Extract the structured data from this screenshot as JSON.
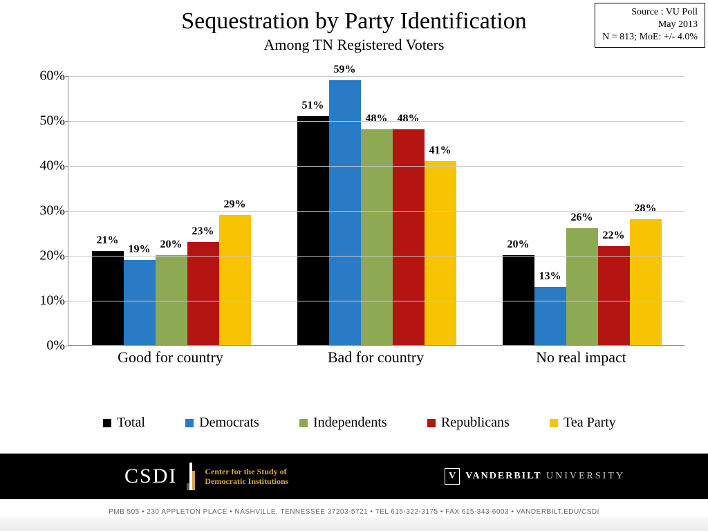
{
  "source": {
    "line1": "Source : VU Poll",
    "line2": "May 2013",
    "line3": "N = 813; MoE: +/- 4.0%"
  },
  "title": "Sequestration by Party Identification",
  "subtitle": "Among TN Registered Voters",
  "chart": {
    "type": "bar",
    "ylim_max": 60,
    "ytick_step": 10,
    "grid_color": "#c8c8c8",
    "categories": [
      "Good for country",
      "Bad for country",
      "No real impact"
    ],
    "series": [
      {
        "name": "Total",
        "color": "#000000"
      },
      {
        "name": "Democrats",
        "color": "#2a7bc6"
      },
      {
        "name": "Independents",
        "color": "#8ea954"
      },
      {
        "name": "Republicans",
        "color": "#b41412"
      },
      {
        "name": "Tea Party",
        "color": "#f7c302"
      }
    ],
    "data": [
      [
        21,
        19,
        20,
        23,
        29
      ],
      [
        51,
        59,
        48,
        48,
        41
      ],
      [
        20,
        13,
        26,
        22,
        28
      ]
    ]
  },
  "footer": {
    "csdi_label": "CSDI",
    "csdi_text1": "Center for the Study of",
    "csdi_text2": "Democratic Institutions",
    "vu_v": "V",
    "vu_bold": "VANDERBILT",
    "vu_light": " UNIVERSITY",
    "cite": "PMB 505 • 230 APPLETON PLACE • NASHVILLE, TENNESSEE 37203-5721 • TEL 615-322-3175 • FAX 615-343-6003 • VANDERBILT.EDU/CSDI"
  }
}
